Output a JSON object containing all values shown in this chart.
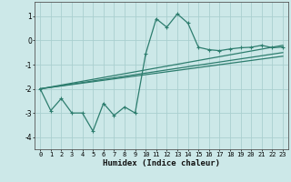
{
  "background_color": "#cce8e8",
  "grid_color": "#aacfcf",
  "line_color": "#2d7d6e",
  "xlabel": "Humidex (Indice chaleur)",
  "ylim": [
    -4.5,
    1.6
  ],
  "xlim": [
    -0.5,
    23.5
  ],
  "yticks": [
    -4,
    -3,
    -2,
    -1,
    0,
    1
  ],
  "xticks": [
    0,
    1,
    2,
    3,
    4,
    5,
    6,
    7,
    8,
    9,
    10,
    11,
    12,
    13,
    14,
    15,
    16,
    17,
    18,
    19,
    20,
    21,
    22,
    23
  ],
  "series1_x": [
    0,
    1,
    2,
    3,
    4,
    5,
    6,
    7,
    8,
    9,
    10,
    11,
    12,
    13,
    14,
    15,
    16,
    17,
    18,
    19,
    20,
    21,
    22,
    23
  ],
  "series1_y": [
    -2.0,
    -2.9,
    -2.4,
    -3.0,
    -3.0,
    -3.75,
    -2.6,
    -3.1,
    -2.75,
    -3.0,
    -0.55,
    0.9,
    0.55,
    1.1,
    0.72,
    -0.28,
    -0.38,
    -0.42,
    -0.35,
    -0.3,
    -0.28,
    -0.2,
    -0.3,
    -0.27
  ],
  "series2_x": [
    0,
    23
  ],
  "series2_y": [
    -2.0,
    -0.2
  ],
  "series3_x": [
    0,
    23
  ],
  "series3_y": [
    -2.0,
    -0.5
  ],
  "series4_x": [
    0,
    23
  ],
  "series4_y": [
    -2.0,
    -0.65
  ]
}
